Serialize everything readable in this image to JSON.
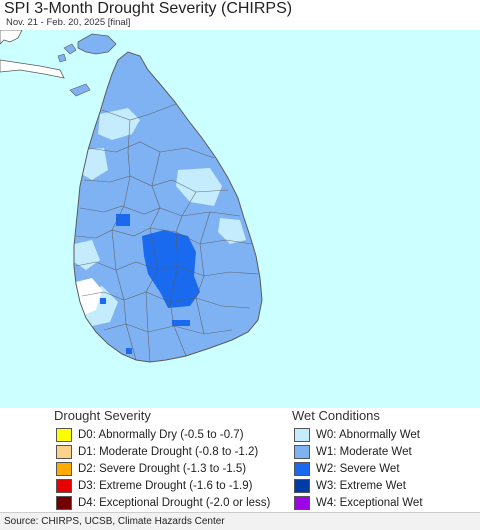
{
  "header": {
    "title": "SPI 3-Month Drought Severity (CHIRPS)",
    "subtitle": "Nov. 21 - Feb. 20, 2025 [final]"
  },
  "colors": {
    "water": "#ccffff",
    "no_data_land": "#ffffff",
    "w0": "#c4ecfc",
    "w1": "#7fb2f2",
    "w2": "#1a6af0",
    "w3": "#003ca6",
    "w4": "#9c06e6",
    "boundary": "#5a5a5a"
  },
  "legend": {
    "drought": {
      "heading": "Drought Severity",
      "items": [
        {
          "code": "D0",
          "label": "D0: Abnormally Dry (-0.5 to -0.7)",
          "color": "#ffff00"
        },
        {
          "code": "D1",
          "label": "D1: Moderate Drought (-0.8 to -1.2)",
          "color": "#fcd28a"
        },
        {
          "code": "D2",
          "label": "D2: Severe Drought (-1.3 to -1.5)",
          "color": "#ffaa00"
        },
        {
          "code": "D3",
          "label": "D3: Extreme Drought (-1.6 to -1.9)",
          "color": "#e60000"
        },
        {
          "code": "D4",
          "label": "D4: Exceptional Drought (-2.0 or less)",
          "color": "#730000"
        }
      ]
    },
    "wet": {
      "heading": "Wet Conditions",
      "items": [
        {
          "code": "W0",
          "label": "W0: Abnormally Wet",
          "color": "#c4ecfc"
        },
        {
          "code": "W1",
          "label": "W1: Moderate Wet",
          "color": "#7fb2f2"
        },
        {
          "code": "W2",
          "label": "W2: Severe Wet",
          "color": "#1a6af0"
        },
        {
          "code": "W3",
          "label": "W3: Extreme Wet",
          "color": "#003ca6"
        },
        {
          "code": "W4",
          "label": "W4: Exceptional Wet",
          "color": "#9c06e6"
        }
      ]
    }
  },
  "footer": {
    "source": "Source: CHIRPS, UCSB, Climate Hazards Center"
  }
}
